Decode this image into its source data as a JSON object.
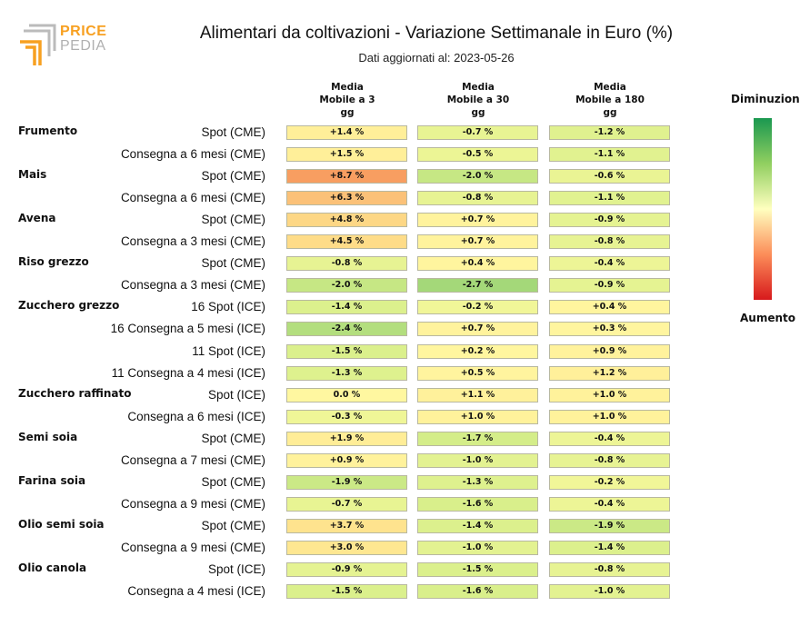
{
  "logo": {
    "text_top": "PRICE",
    "text_bottom": "PEDIA"
  },
  "header": {
    "title": "Alimentari da coltivazioni - Variazione Settimanale in Euro (%)",
    "subtitle": "Dati aggiornati al: 2023-05-26"
  },
  "legend": {
    "top": "Diminuzione",
    "bottom": "Aumento"
  },
  "chart_data": {
    "type": "heatmap",
    "title": "Alimentari da coltivazioni - Variazione Settimanale in Euro (%)",
    "subtitle": "Dati aggiornati al: 2023-05-26",
    "columns": [
      [
        "Media",
        "Mobile a 3",
        "gg"
      ],
      [
        "Media",
        "Mobile a 30",
        "gg"
      ],
      [
        "Media",
        "Mobile a 180",
        "gg"
      ]
    ],
    "color_scale": {
      "negative": "#1a9850",
      "zero": "#ffffbf",
      "positive": "#d7191c"
    },
    "groups": [
      {
        "name": "Frumento",
        "rows": [
          {
            "label": "Spot (CME)",
            "values": [
              "+1.4 %",
              "-0.7 %",
              "-1.2 %"
            ],
            "nums": [
              1.4,
              -0.7,
              -1.2
            ]
          },
          {
            "label": "Consegna a 6 mesi (CME)",
            "values": [
              "+1.5 %",
              "-0.5 %",
              "-1.1 %"
            ],
            "nums": [
              1.5,
              -0.5,
              -1.1
            ]
          }
        ]
      },
      {
        "name": "Mais",
        "rows": [
          {
            "label": "Spot (CME)",
            "values": [
              "+8.7 %",
              "-2.0 %",
              "-0.6 %"
            ],
            "nums": [
              8.7,
              -2.0,
              -0.6
            ]
          },
          {
            "label": "Consegna a 6 mesi (CME)",
            "values": [
              "+6.3 %",
              "-0.8 %",
              "-1.1 %"
            ],
            "nums": [
              6.3,
              -0.8,
              -1.1
            ]
          }
        ]
      },
      {
        "name": "Avena",
        "rows": [
          {
            "label": "Spot (CME)",
            "values": [
              "+4.8 %",
              "+0.7 %",
              "-0.9 %"
            ],
            "nums": [
              4.8,
              0.7,
              -0.9
            ]
          },
          {
            "label": "Consegna a 3 mesi (CME)",
            "values": [
              "+4.5 %",
              "+0.7 %",
              "-0.8 %"
            ],
            "nums": [
              4.5,
              0.7,
              -0.8
            ]
          }
        ]
      },
      {
        "name": "Riso grezzo",
        "rows": [
          {
            "label": "Spot (CME)",
            "values": [
              "-0.8 %",
              "+0.4 %",
              "-0.4 %"
            ],
            "nums": [
              -0.8,
              0.4,
              -0.4
            ]
          },
          {
            "label": "Consegna a 3 mesi (CME)",
            "values": [
              "-2.0 %",
              "-2.7 %",
              "-0.9 %"
            ],
            "nums": [
              -2.0,
              -2.7,
              -0.9
            ]
          }
        ]
      },
      {
        "name": "Zucchero grezzo",
        "rows": [
          {
            "label": "16 Spot (ICE)",
            "values": [
              "-1.4 %",
              "-0.2 %",
              "+0.4 %"
            ],
            "nums": [
              -1.4,
              -0.2,
              0.4
            ]
          },
          {
            "label": "16 Consegna a 5 mesi (ICE)",
            "values": [
              "-2.4 %",
              "+0.7 %",
              "+0.3 %"
            ],
            "nums": [
              -2.4,
              0.7,
              0.3
            ]
          },
          {
            "label": "11 Spot (ICE)",
            "values": [
              "-1.5 %",
              "+0.2 %",
              "+0.9 %"
            ],
            "nums": [
              -1.5,
              0.2,
              0.9
            ]
          },
          {
            "label": "11 Consegna a 4 mesi (ICE)",
            "values": [
              "-1.3 %",
              "+0.5 %",
              "+1.2 %"
            ],
            "nums": [
              -1.3,
              0.5,
              1.2
            ]
          }
        ]
      },
      {
        "name": "Zucchero raffinato",
        "rows": [
          {
            "label": "Spot (ICE)",
            "values": [
              "0.0 %",
              "+1.1 %",
              "+1.0 %"
            ],
            "nums": [
              0.0,
              1.1,
              1.0
            ]
          },
          {
            "label": "Consegna a 6 mesi (ICE)",
            "values": [
              "-0.3 %",
              "+1.0 %",
              "+1.0 %"
            ],
            "nums": [
              -0.3,
              1.0,
              1.0
            ]
          }
        ]
      },
      {
        "name": "Semi soia",
        "rows": [
          {
            "label": "Spot (CME)",
            "values": [
              "+1.9 %",
              "-1.7 %",
              "-0.4 %"
            ],
            "nums": [
              1.9,
              -1.7,
              -0.4
            ]
          },
          {
            "label": "Consegna a 7 mesi (CME)",
            "values": [
              "+0.9 %",
              "-1.0 %",
              "-0.8 %"
            ],
            "nums": [
              0.9,
              -1.0,
              -0.8
            ]
          }
        ]
      },
      {
        "name": "Farina soia",
        "rows": [
          {
            "label": "Spot (CME)",
            "values": [
              "-1.9 %",
              "-1.3 %",
              "-0.2 %"
            ],
            "nums": [
              -1.9,
              -1.3,
              -0.2
            ]
          },
          {
            "label": "Consegna a 9 mesi (CME)",
            "values": [
              "-0.7 %",
              "-1.6 %",
              "-0.4 %"
            ],
            "nums": [
              -0.7,
              -1.6,
              -0.4
            ]
          }
        ]
      },
      {
        "name": "Olio semi soia",
        "rows": [
          {
            "label": "Spot (CME)",
            "values": [
              "+3.7 %",
              "-1.4 %",
              "-1.9 %"
            ],
            "nums": [
              3.7,
              -1.4,
              -1.9
            ]
          },
          {
            "label": "Consegna a 9 mesi (CME)",
            "values": [
              "+3.0 %",
              "-1.0 %",
              "-1.4 %"
            ],
            "nums": [
              3.0,
              -1.0,
              -1.4
            ]
          }
        ]
      },
      {
        "name": "Olio canola",
        "rows": [
          {
            "label": "Spot (ICE)",
            "values": [
              "-0.9 %",
              "-1.5 %",
              "-0.8 %"
            ],
            "nums": [
              -0.9,
              -1.5,
              -0.8
            ]
          },
          {
            "label": "Consegna a 4 mesi (ICE)",
            "values": [
              "-1.5 %",
              "-1.6 %",
              "-1.0 %"
            ],
            "nums": [
              -1.5,
              -1.6,
              -1.0
            ]
          }
        ]
      }
    ]
  }
}
